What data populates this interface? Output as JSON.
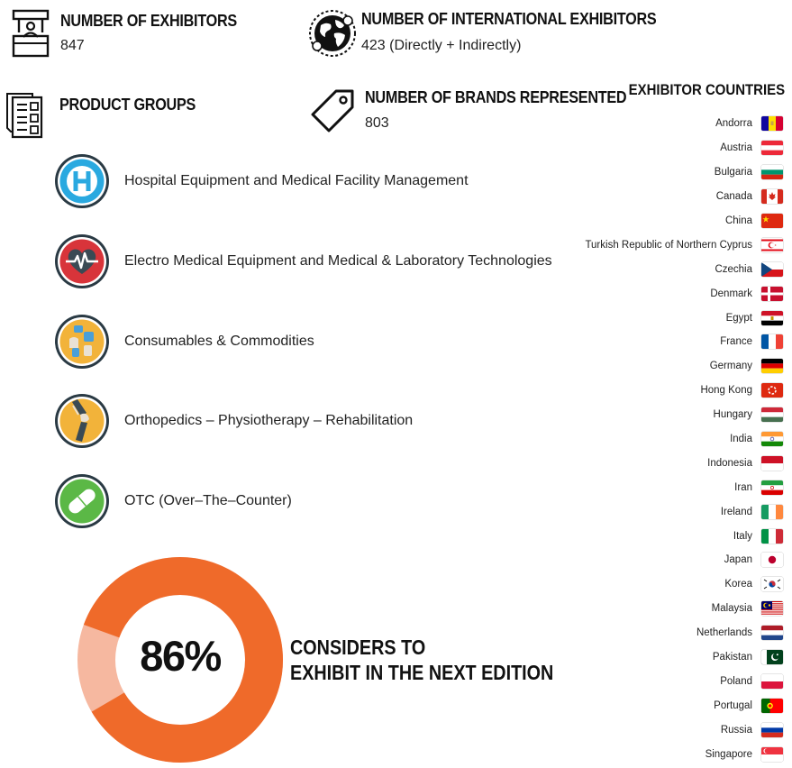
{
  "stats": {
    "exhibitors": {
      "title": "NUMBER OF EXHIBITORS",
      "value": "847",
      "icon": "booth-icon"
    },
    "international": {
      "title": "NUMBER OF INTERNATIONAL EXHIBITORS",
      "value": "423 (Directly + Indirectly)",
      "icon": "globe-icon"
    },
    "product_groups": {
      "title": "PRODUCT GROUPS",
      "icon": "catalog-icon"
    },
    "brands": {
      "title": "NUMBER OF BRANDS REPRESENTED",
      "value": "803",
      "icon": "tag-icon"
    }
  },
  "product_groups": [
    {
      "label": "Hospital Equipment and Medical Facility Management",
      "icon": "hospital-icon",
      "color": "#2aa9e0"
    },
    {
      "label": "Electro Medical Equipment and Medical & Laboratory Technologies",
      "icon": "heart-pulse-icon",
      "color": "#d8343a"
    },
    {
      "label": "Consumables & Commodities",
      "icon": "consumables-icon",
      "color": "#f2b33a"
    },
    {
      "label": "Orthopedics – Physiotherapy – Rehabilitation",
      "icon": "knee-joint-icon",
      "color": "#f2b33a"
    },
    {
      "label": "OTC (Over–The–Counter)",
      "icon": "pill-icon",
      "color": "#5bb846"
    }
  ],
  "survey": {
    "percent_text": "86%",
    "percent": 86,
    "caption_line1": "CONSIDERS TO",
    "caption_line2": "EXHIBIT IN THE NEXT EDITION",
    "colors": {
      "main": "#ef6a2a",
      "rest": "#f6b8a0"
    }
  },
  "countries": {
    "title": "EXHIBITOR COUNTRIES",
    "items": [
      {
        "name": "Andorra",
        "flag": "andorra"
      },
      {
        "name": "Austria",
        "flag": "austria"
      },
      {
        "name": "Bulgaria",
        "flag": "bulgaria"
      },
      {
        "name": "Canada",
        "flag": "canada"
      },
      {
        "name": "China",
        "flag": "china"
      },
      {
        "name": "Turkish Republic of Northern Cyprus",
        "flag": "trnc"
      },
      {
        "name": "Czechia",
        "flag": "czechia"
      },
      {
        "name": "Denmark",
        "flag": "denmark"
      },
      {
        "name": "Egypt",
        "flag": "egypt"
      },
      {
        "name": "France",
        "flag": "france"
      },
      {
        "name": "Germany",
        "flag": "germany"
      },
      {
        "name": "Hong Kong",
        "flag": "hongkong"
      },
      {
        "name": "Hungary",
        "flag": "hungary"
      },
      {
        "name": "India",
        "flag": "india"
      },
      {
        "name": "Indonesia",
        "flag": "indonesia"
      },
      {
        "name": "Iran",
        "flag": "iran"
      },
      {
        "name": "Ireland",
        "flag": "ireland"
      },
      {
        "name": "Italy",
        "flag": "italy"
      },
      {
        "name": "Japan",
        "flag": "japan"
      },
      {
        "name": "Korea",
        "flag": "korea"
      },
      {
        "name": "Malaysia",
        "flag": "malaysia"
      },
      {
        "name": "Netherlands",
        "flag": "netherlands"
      },
      {
        "name": "Pakistan",
        "flag": "pakistan"
      },
      {
        "name": "Poland",
        "flag": "poland"
      },
      {
        "name": "Portugal",
        "flag": "portugal"
      },
      {
        "name": "Russia",
        "flag": "russia"
      },
      {
        "name": "Singapore",
        "flag": "singapore"
      }
    ]
  }
}
